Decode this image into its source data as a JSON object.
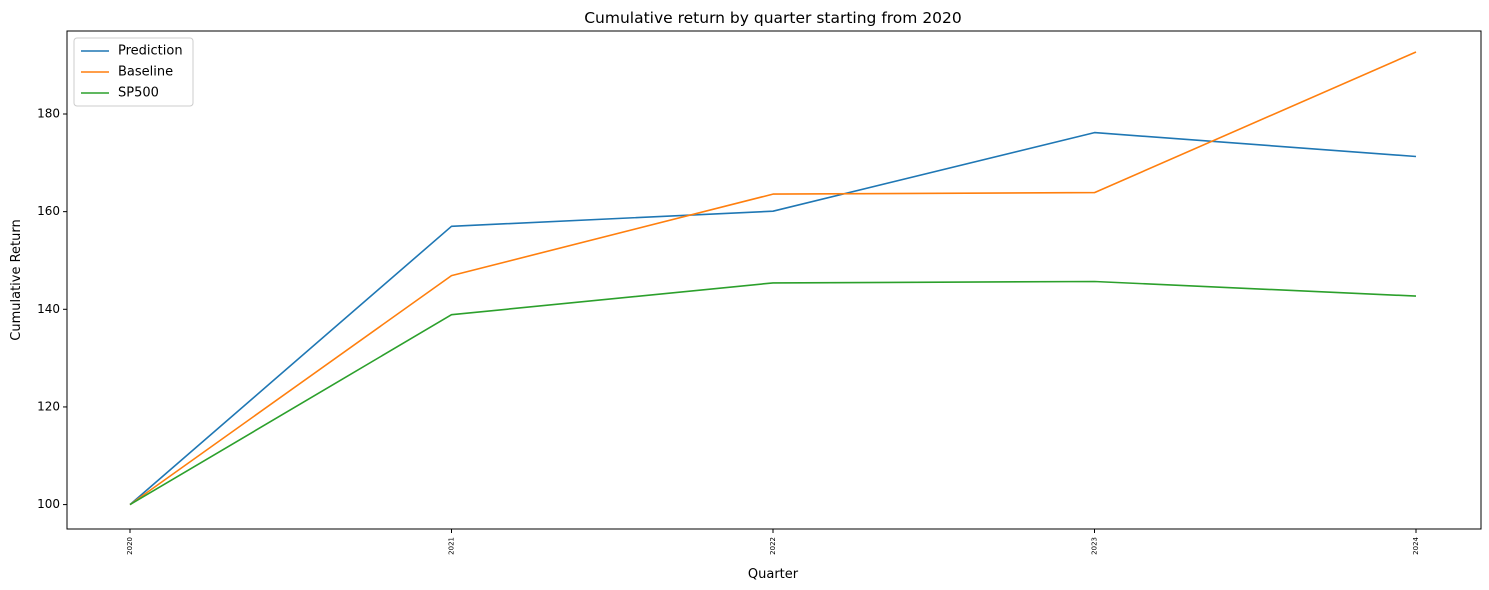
{
  "chart_data": {
    "type": "line",
    "title": "Cumulative return by quarter starting from 2020",
    "xlabel": "Quarter",
    "ylabel": "Cumulative Return",
    "categories": [
      "2020",
      "2021",
      "2022",
      "2023",
      "2024"
    ],
    "yticks": [
      100,
      120,
      140,
      160,
      180
    ],
    "ylim": [
      95,
      197
    ],
    "grid": false,
    "legend_position": "top-left",
    "series": [
      {
        "name": "Prediction",
        "color": "#1f77b4",
        "values": [
          100,
          157.0,
          160.1,
          176.2,
          171.3
        ]
      },
      {
        "name": "Baseline",
        "color": "#ff7f0e",
        "values": [
          100,
          146.9,
          163.6,
          163.9,
          192.7
        ]
      },
      {
        "name": "SP500",
        "color": "#2ca02c",
        "values": [
          100,
          138.9,
          145.4,
          145.7,
          142.7
        ]
      }
    ]
  }
}
